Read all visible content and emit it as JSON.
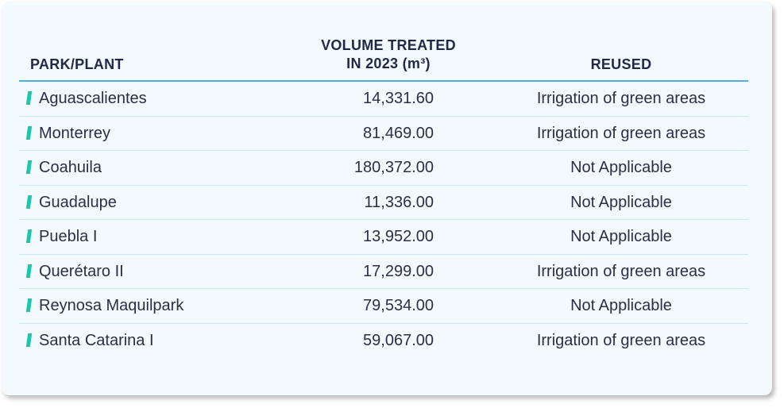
{
  "table": {
    "headers": {
      "park": "PARK/PLANT",
      "volume_line1": "VOLUME TREATED",
      "volume_line2": "IN 2023 (m³)",
      "reused": "REUSED"
    },
    "rows": [
      {
        "name": "Aguascalientes",
        "volume": "14,331.60",
        "reused": "Irrigation of green areas"
      },
      {
        "name": "Monterrey",
        "volume": "81,469.00",
        "reused": "Irrigation of green areas"
      },
      {
        "name": "Coahuila",
        "volume": "180,372.00",
        "reused": "Not Applicable"
      },
      {
        "name": "Guadalupe",
        "volume": "11,336.00",
        "reused": "Not Applicable"
      },
      {
        "name": "Puebla I",
        "volume": "13,952.00",
        "reused": "Not Applicable"
      },
      {
        "name": "Querétaro II",
        "volume": "17,299.00",
        "reused": "Irrigation of green areas"
      },
      {
        "name": "Reynosa Maquilpark",
        "volume": "79,534.00",
        "reused": "Not Applicable"
      },
      {
        "name": "Santa Catarina I",
        "volume": "59,067.00",
        "reused": "Irrigation of green areas"
      }
    ]
  },
  "colors": {
    "card_background": "#f2fafd",
    "header_rule": "#4cb3dc",
    "row_marker": "#1fc7a6",
    "text": "#2a2f45"
  }
}
